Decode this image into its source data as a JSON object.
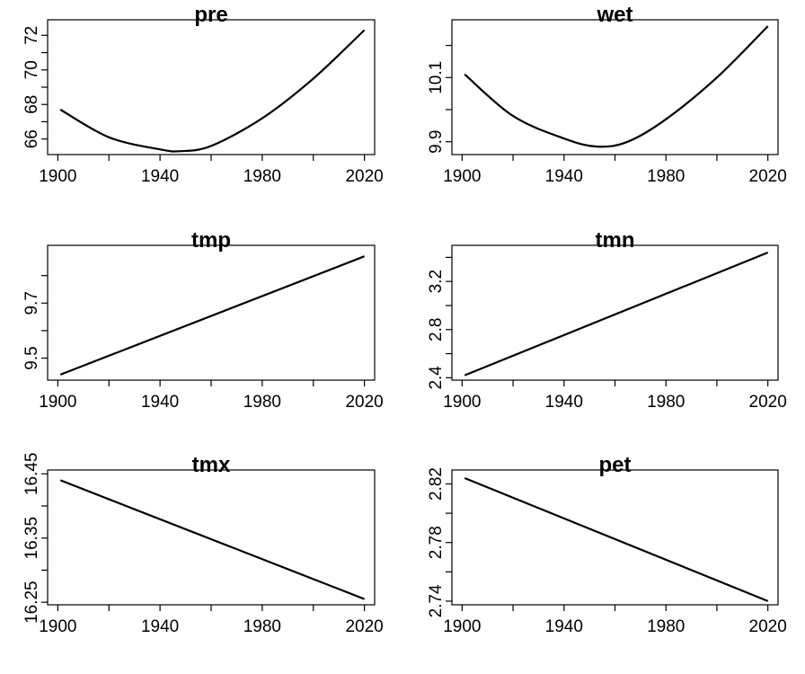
{
  "chart_data": [
    {
      "type": "line",
      "title": "pre",
      "xlabel": "",
      "ylabel": "",
      "xlim": [
        1896,
        2024
      ],
      "ylim": [
        65.1,
        72.9
      ],
      "xticks": [
        "1900",
        "1940",
        "1980",
        "2020"
      ],
      "yticks": [
        "66",
        "68",
        "70",
        "72"
      ],
      "y_minor_ticks": [
        67,
        69,
        71
      ],
      "x": [
        1901,
        1920,
        1940,
        1948,
        1960,
        1980,
        2000,
        2020
      ],
      "values": [
        67.7,
        66.1,
        65.4,
        65.3,
        65.6,
        67.2,
        69.5,
        72.3
      ]
    },
    {
      "type": "line",
      "title": "wet",
      "xlabel": "",
      "ylabel": "",
      "xlim": [
        1896,
        2024
      ],
      "ylim": [
        9.86,
        10.28
      ],
      "xticks": [
        "1900",
        "1940",
        "1980",
        "2020"
      ],
      "yticks": [
        "9.9",
        "10.1"
      ],
      "y_minor_ticks": [
        10.0,
        10.2
      ],
      "x": [
        1901,
        1920,
        1940,
        1953,
        1965,
        1980,
        2000,
        2020
      ],
      "values": [
        10.11,
        9.98,
        9.91,
        9.885,
        9.9,
        9.97,
        10.1,
        10.26
      ]
    },
    {
      "type": "line",
      "title": "tmp",
      "xlabel": "",
      "ylabel": "",
      "xlim": [
        1896,
        2024
      ],
      "ylim": [
        9.42,
        9.91
      ],
      "xticks": [
        "1900",
        "1940",
        "1980",
        "2020"
      ],
      "yticks": [
        "9.5",
        "9.7"
      ],
      "y_minor_ticks": [
        9.6,
        9.8
      ],
      "x": [
        1901,
        2020
      ],
      "values": [
        9.44,
        9.87
      ]
    },
    {
      "type": "line",
      "title": "tmn",
      "xlabel": "",
      "ylabel": "",
      "xlim": [
        1896,
        2024
      ],
      "ylim": [
        2.38,
        3.5
      ],
      "xticks": [
        "1900",
        "1940",
        "1980",
        "2020"
      ],
      "yticks": [
        "2.4",
        "2.8",
        "3.2"
      ],
      "y_minor_ticks": [
        2.6,
        3.0,
        3.4
      ],
      "x": [
        1901,
        2020
      ],
      "values": [
        2.42,
        3.44
      ]
    },
    {
      "type": "line",
      "title": "tmx",
      "xlabel": "",
      "ylabel": "",
      "xlim": [
        1896,
        2024
      ],
      "ylim": [
        16.246,
        16.456
      ],
      "xticks": [
        "1900",
        "1940",
        "1980",
        "2020"
      ],
      "yticks": [
        "16.25",
        "16.35",
        "16.45"
      ],
      "y_minor_ticks": [
        16.3,
        16.4
      ],
      "x": [
        1901,
        2020
      ],
      "values": [
        16.44,
        16.255
      ]
    },
    {
      "type": "line",
      "title": "pet",
      "xlabel": "",
      "ylabel": "",
      "xlim": [
        1896,
        2024
      ],
      "ylim": [
        2.7375,
        2.8295
      ],
      "xticks": [
        "1900",
        "1940",
        "1980",
        "2020"
      ],
      "yticks": [
        "2.74",
        "2.78",
        "2.82"
      ],
      "y_minor_ticks": [
        2.76,
        2.8
      ],
      "x": [
        1901,
        2020
      ],
      "values": [
        2.824,
        2.74
      ]
    }
  ]
}
